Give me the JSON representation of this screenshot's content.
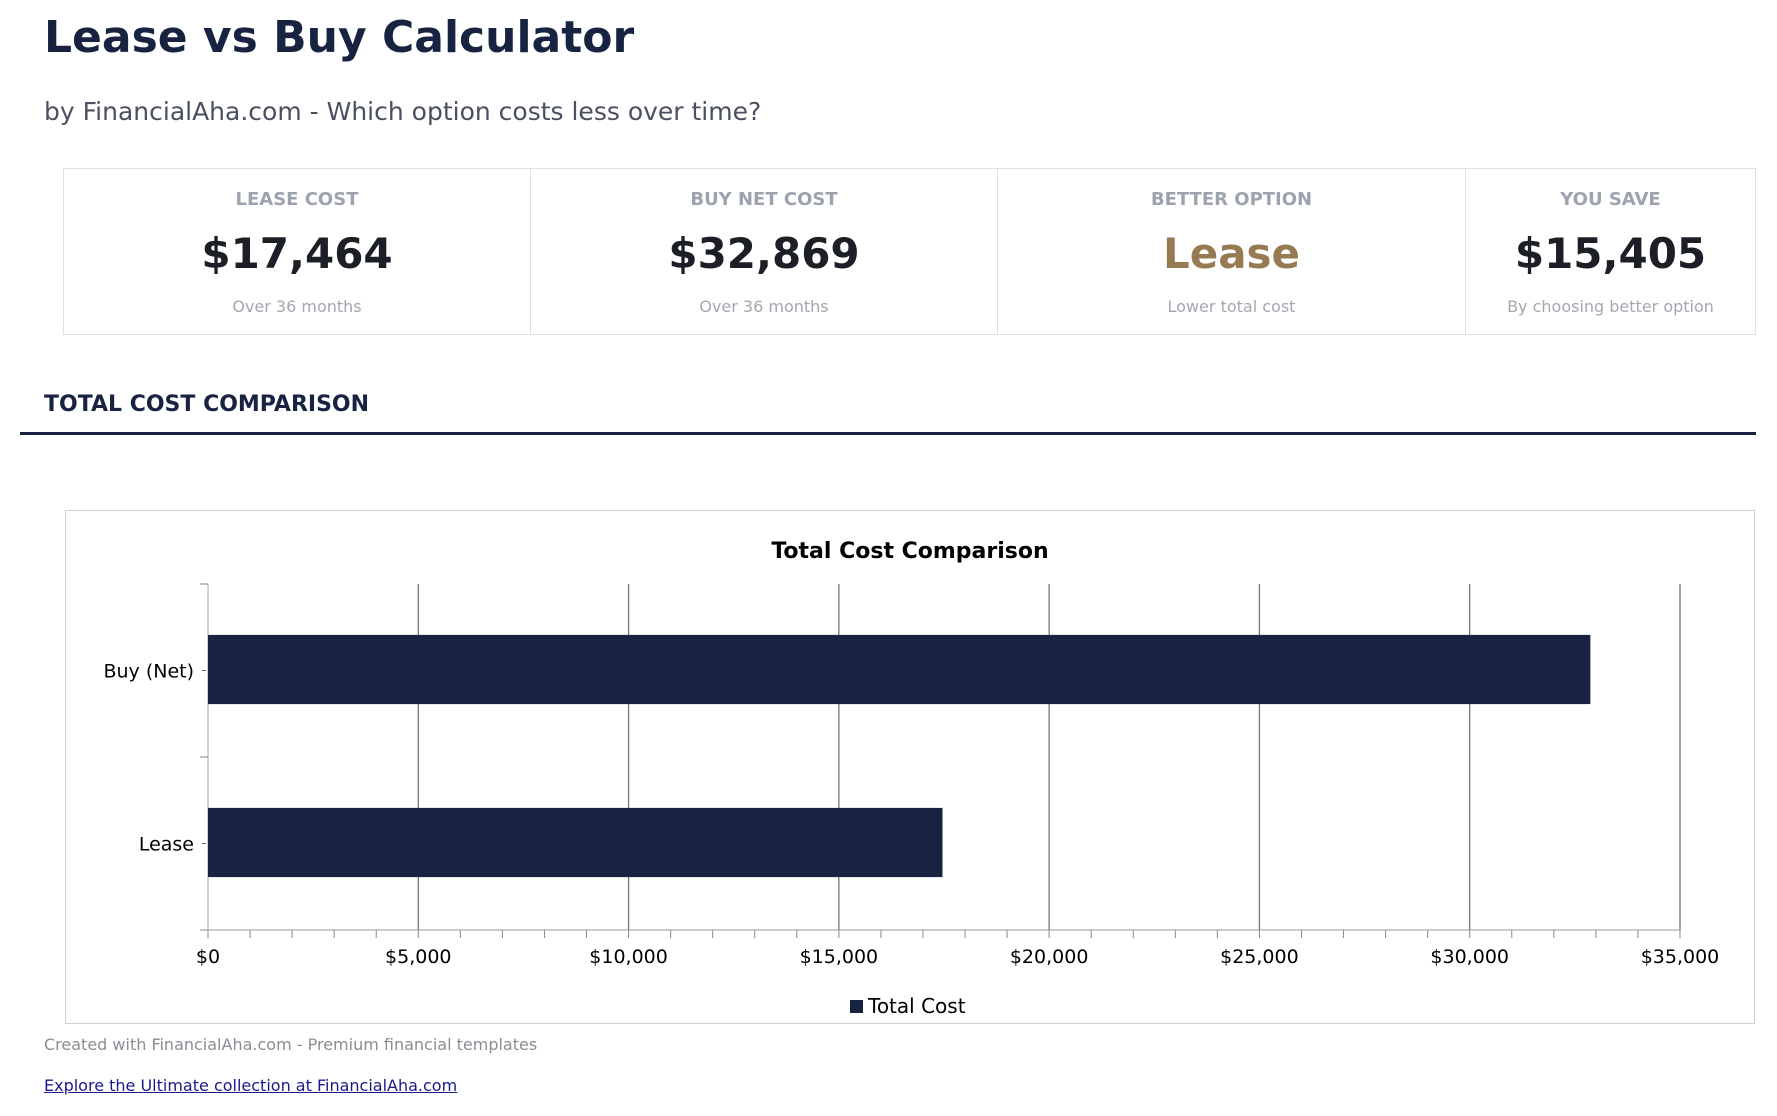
{
  "header": {
    "title": "Lease vs Buy Calculator",
    "subtitle": "by FinancialAha.com - Which option costs less over time?"
  },
  "cards": [
    {
      "label": "LEASE COST",
      "value": "$17,464",
      "sub": "Over 36 months"
    },
    {
      "label": "BUY NET COST",
      "value": "$32,869",
      "sub": "Over 36 months"
    },
    {
      "label": "BETTER OPTION",
      "value": "Lease",
      "sub": "Lower total cost"
    },
    {
      "label": "YOU SAVE",
      "value": "$15,405",
      "sub": "By choosing better option"
    }
  ],
  "colors": {
    "navy": "#172340",
    "accent": "#967a52"
  },
  "section": {
    "title": "TOTAL COST COMPARISON"
  },
  "chart_data": {
    "type": "bar",
    "orientation": "horizontal",
    "title": "Total Cost Comparison",
    "categories": [
      "Buy (Net)",
      "Lease"
    ],
    "series": [
      {
        "name": "Total Cost",
        "values": [
          32869,
          17464
        ],
        "color": "#172340"
      }
    ],
    "xlim": [
      0,
      35000
    ],
    "xticks": [
      0,
      5000,
      10000,
      15000,
      20000,
      25000,
      30000,
      35000
    ],
    "xtick_labels": [
      "$0",
      "$5,000",
      "$10,000",
      "$15,000",
      "$20,000",
      "$25,000",
      "$30,000",
      "$35,000"
    ],
    "grid": true,
    "legend": "bottom"
  },
  "footer": {
    "credit": "Created with FinancialAha.com - Premium financial templates",
    "link": "Explore the Ultimate collection at FinancialAha.com"
  }
}
